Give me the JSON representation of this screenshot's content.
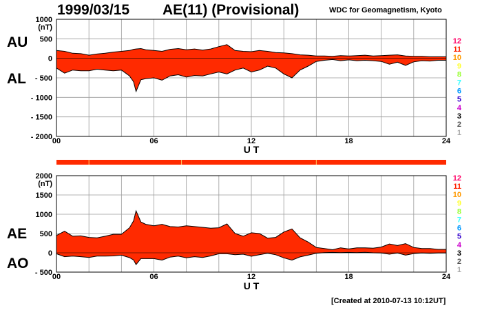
{
  "header": {
    "date": "1999/03/15",
    "index_title": "AE(11) (Provisional)",
    "organization": "WDC for Geomagnetism, Kyoto"
  },
  "footer": {
    "created": "[Created at 2010-07-13 10:12UT]"
  },
  "colors": {
    "fill": "#ff2a00",
    "outline": "#000000",
    "grid": "#9a9a9a",
    "station_bar": "#ff2a00",
    "station_bar_marks": "#ffcc66"
  },
  "station_legend": {
    "numbers": [
      "12",
      "11",
      "10",
      "9",
      "8",
      "7",
      "6",
      "5",
      "4",
      "3",
      "2",
      "1"
    ],
    "colors": [
      "#ff0066",
      "#ff2200",
      "#ff9900",
      "#ffff33",
      "#99ff33",
      "#33ffff",
      "#0099ff",
      "#3300cc",
      "#cc00cc",
      "#000000",
      "#555555",
      "#aaaaaa"
    ]
  },
  "chart_data": [
    {
      "type": "area",
      "title": "",
      "xlabel": "U T",
      "ylabel": "(nT)",
      "series_labels": {
        "upper": "AU",
        "lower": "AL"
      },
      "xlim": [
        0,
        24
      ],
      "ylim": [
        -2000,
        1000
      ],
      "xticks": [
        "00",
        "06",
        "12",
        "18",
        "24"
      ],
      "yticks": [
        "1000",
        "500",
        "0",
        "- 500",
        "- 1000",
        "- 1500",
        "- 2000"
      ],
      "ytick_values": [
        1000,
        500,
        0,
        -500,
        -1000,
        -1500,
        -2000
      ],
      "x": [
        0,
        0.5,
        1,
        1.5,
        2,
        2.5,
        3,
        3.5,
        4,
        4.5,
        4.75,
        4.9,
        5.2,
        5.5,
        6,
        6.5,
        7,
        7.5,
        8,
        8.5,
        9,
        9.5,
        10,
        10.5,
        11,
        11.5,
        12,
        12.5,
        13,
        13.5,
        14,
        14.5,
        15,
        15.5,
        16,
        16.5,
        17,
        17.5,
        18,
        18.5,
        19,
        19.5,
        20,
        20.5,
        21,
        21.5,
        22,
        22.5,
        23,
        23.5,
        24
      ],
      "series": [
        {
          "name": "AU",
          "values": [
            200,
            180,
            130,
            120,
            80,
            110,
            130,
            160,
            180,
            200,
            230,
            240,
            250,
            220,
            200,
            180,
            230,
            250,
            220,
            240,
            210,
            240,
            300,
            350,
            200,
            180,
            170,
            200,
            180,
            150,
            140,
            120,
            90,
            80,
            60,
            60,
            50,
            70,
            60,
            70,
            80,
            60,
            70,
            80,
            90,
            60,
            50,
            50,
            40,
            40,
            40
          ]
        },
        {
          "name": "AL",
          "values": [
            -250,
            -380,
            -300,
            -320,
            -320,
            -280,
            -300,
            -320,
            -300,
            -450,
            -600,
            -850,
            -550,
            -520,
            -500,
            -560,
            -450,
            -420,
            -480,
            -440,
            -450,
            -400,
            -350,
            -400,
            -300,
            -250,
            -350,
            -300,
            -200,
            -250,
            -400,
            -500,
            -300,
            -200,
            -80,
            -50,
            -30,
            -60,
            -40,
            -60,
            -50,
            -60,
            -80,
            -150,
            -100,
            -180,
            -90,
            -60,
            -70,
            -50,
            -50
          ]
        }
      ]
    },
    {
      "type": "area",
      "title": "",
      "xlabel": "U T",
      "ylabel": "(nT)",
      "series_labels": {
        "upper": "AE",
        "lower": "AO"
      },
      "xlim": [
        0,
        24
      ],
      "ylim": [
        -500,
        2000
      ],
      "xticks": [
        "00",
        "06",
        "12",
        "18",
        "24"
      ],
      "yticks": [
        "2000",
        "1500",
        "1000",
        "500",
        "0",
        "- 500"
      ],
      "ytick_values": [
        2000,
        1500,
        1000,
        500,
        0,
        -500
      ],
      "x": [
        0,
        0.5,
        1,
        1.5,
        2,
        2.5,
        3,
        3.5,
        4,
        4.5,
        4.75,
        4.9,
        5.2,
        5.5,
        6,
        6.5,
        7,
        7.5,
        8,
        8.5,
        9,
        9.5,
        10,
        10.5,
        11,
        11.5,
        12,
        12.5,
        13,
        13.5,
        14,
        14.5,
        15,
        15.5,
        16,
        16.5,
        17,
        17.5,
        18,
        18.5,
        19,
        19.5,
        20,
        20.5,
        21,
        21.5,
        22,
        22.5,
        23,
        23.5,
        24
      ],
      "series": [
        {
          "name": "AE",
          "values": [
            450,
            560,
            430,
            440,
            400,
            390,
            430,
            480,
            480,
            650,
            830,
            1090,
            800,
            740,
            700,
            740,
            680,
            670,
            700,
            680,
            660,
            640,
            650,
            750,
            500,
            430,
            520,
            500,
            380,
            400,
            540,
            620,
            390,
            280,
            140,
            110,
            80,
            130,
            100,
            130,
            130,
            120,
            150,
            230,
            190,
            240,
            140,
            110,
            110,
            90,
            90
          ]
        },
        {
          "name": "AO",
          "values": [
            -25,
            -100,
            -85,
            -100,
            -120,
            -85,
            -85,
            -80,
            -60,
            -125,
            -185,
            -305,
            -150,
            -150,
            -150,
            -190,
            -110,
            -85,
            -130,
            -100,
            -120,
            -80,
            -25,
            -25,
            -50,
            -35,
            -90,
            -50,
            -10,
            -50,
            -130,
            -190,
            -105,
            -60,
            -10,
            5,
            10,
            5,
            10,
            5,
            15,
            0,
            -5,
            -35,
            -5,
            -60,
            -20,
            -5,
            -15,
            -5,
            -5
          ]
        }
      ]
    }
  ]
}
